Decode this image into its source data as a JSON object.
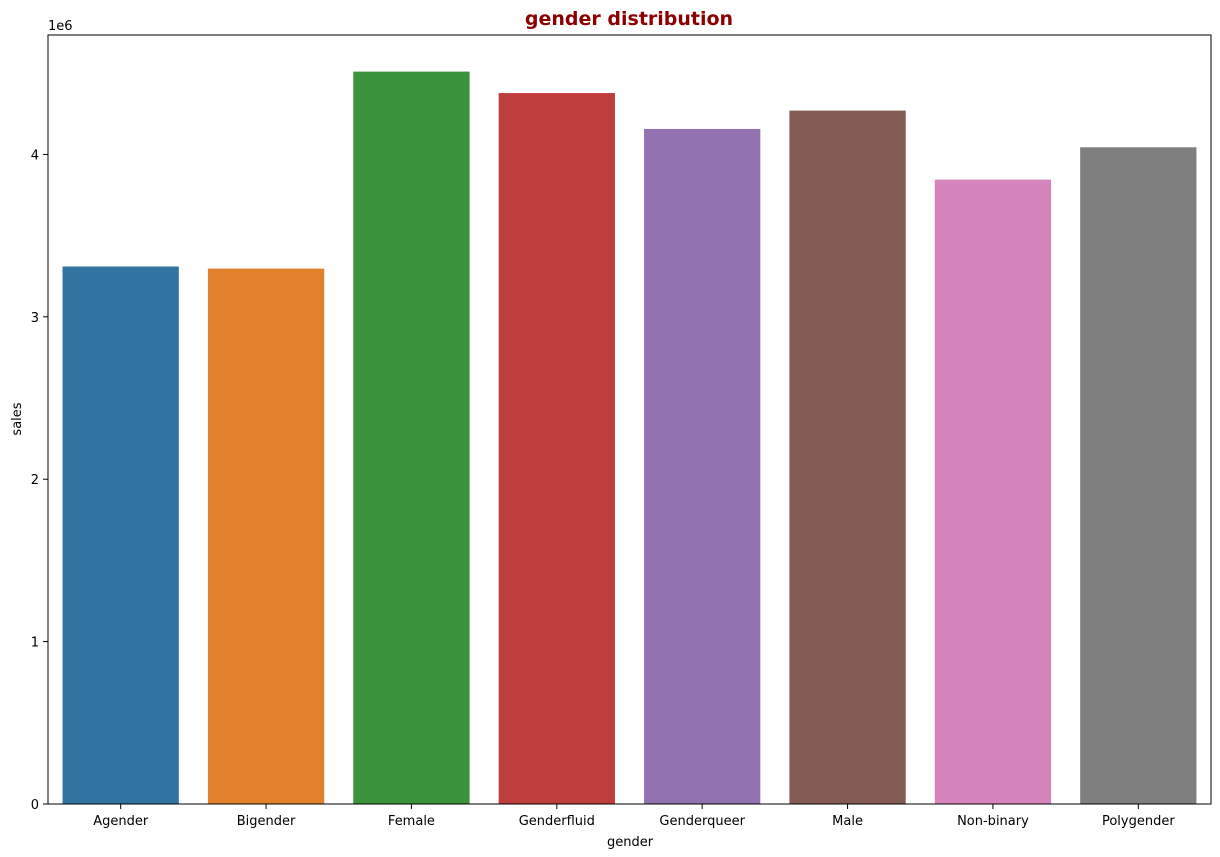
{
  "chart_data": {
    "type": "bar",
    "title": "gender distribution",
    "title_color": "#8b0000",
    "xlabel": "gender",
    "ylabel": "sales",
    "y_offset_label": "1e6",
    "categories": [
      "Agender",
      "Bigender",
      "Female",
      "Genderfluid",
      "Genderqueer",
      "Male",
      "Non-binary",
      "Polygender"
    ],
    "values": [
      3310000,
      3297000,
      4510000,
      4378000,
      4157000,
      4270000,
      3845000,
      4044000
    ],
    "colors": [
      "#3274a1",
      "#e1812c",
      "#3a923a",
      "#c03d3e",
      "#9372b2",
      "#845b53",
      "#d684bd",
      "#7f7f7f"
    ],
    "yticks": [
      0,
      1,
      2,
      3,
      4
    ],
    "ylim": [
      0,
      4735500
    ],
    "grid": false,
    "legend": false
  }
}
